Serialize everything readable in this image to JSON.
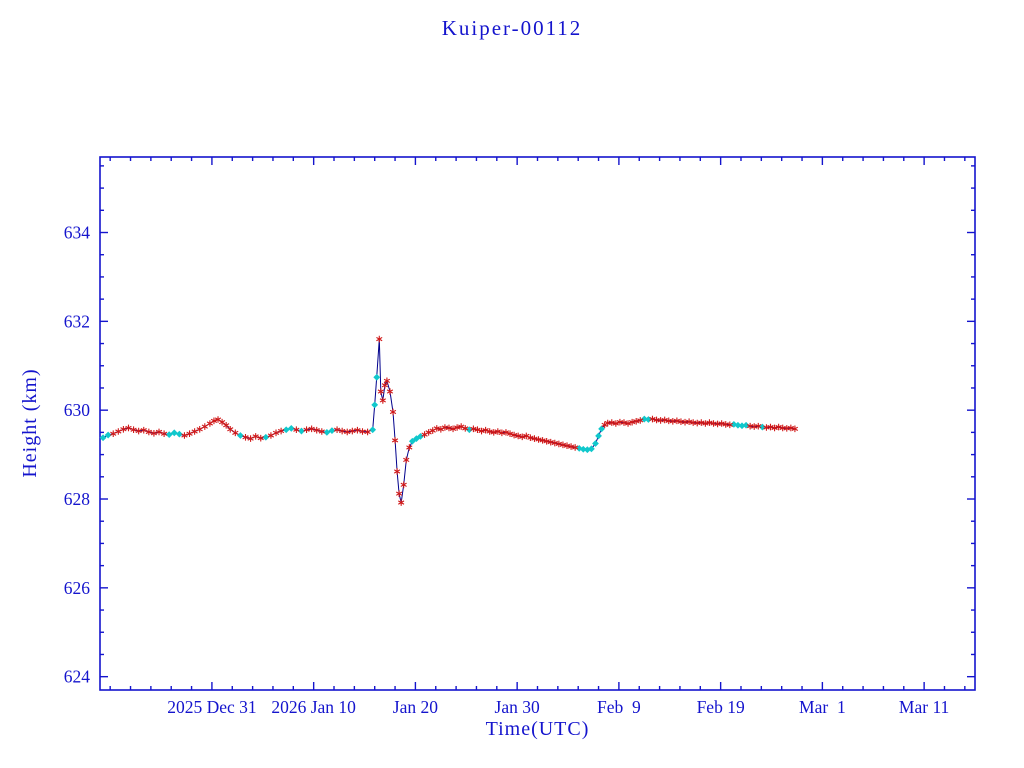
{
  "title": "Kuiper-00112",
  "colors": {
    "text": "#1414cd",
    "axis": "#1414cd",
    "line": "#00008c",
    "marker_red": "#d01818",
    "marker_cyan": "#10c8cc",
    "background": "#ffffff"
  },
  "chart_data": {
    "type": "line",
    "title": "Kuiper-00112",
    "xlabel": "Time(UTC)",
    "ylabel": "Height (km)",
    "grid": false,
    "legend": "none",
    "x_unit": "days (day 11 = 2025 Dec 31, day 21 = 2026 Jan 10)",
    "xlim": [
      0,
      86
    ],
    "ylim": [
      623.7,
      635.7
    ],
    "y_ticks": [
      624,
      626,
      628,
      630,
      632,
      634
    ],
    "y_minor_step": 0.5,
    "x_minor_step": 2,
    "x_ticks": [
      {
        "day": 11,
        "label": "2025 Dec 31"
      },
      {
        "day": 21,
        "label": "2026 Jan 10"
      },
      {
        "day": 31,
        "label": "Jan 20"
      },
      {
        "day": 41,
        "label": "Jan 30"
      },
      {
        "day": 51,
        "label": "Feb  9"
      },
      {
        "day": 61,
        "label": "Feb 19"
      },
      {
        "day": 71,
        "label": "Mar  1"
      },
      {
        "day": 81,
        "label": "Mar 11"
      }
    ],
    "marker_legend": {
      "0": "red asterisk",
      "1": "cyan diamond"
    },
    "series": [
      {
        "name": "height",
        "points": [
          [
            0.3,
            629.38,
            1
          ],
          [
            0.8,
            629.44,
            1
          ],
          [
            1.3,
            629.47,
            0
          ],
          [
            1.8,
            629.52,
            0
          ],
          [
            2.3,
            629.57,
            0
          ],
          [
            2.8,
            629.6,
            0
          ],
          [
            3.3,
            629.56,
            0
          ],
          [
            3.8,
            629.53,
            0
          ],
          [
            4.3,
            629.55,
            0
          ],
          [
            4.8,
            629.51,
            0
          ],
          [
            5.3,
            629.48,
            0
          ],
          [
            5.8,
            629.51,
            0
          ],
          [
            6.3,
            629.47,
            0
          ],
          [
            6.8,
            629.45,
            1
          ],
          [
            7.3,
            629.49,
            1
          ],
          [
            7.8,
            629.46,
            1
          ],
          [
            8.3,
            629.43,
            0
          ],
          [
            8.8,
            629.47,
            0
          ],
          [
            9.3,
            629.52,
            0
          ],
          [
            9.8,
            629.57,
            0
          ],
          [
            10.3,
            629.63,
            0
          ],
          [
            10.8,
            629.7,
            0
          ],
          [
            11.2,
            629.76,
            0
          ],
          [
            11.6,
            629.79,
            0
          ],
          [
            12.0,
            629.73,
            0
          ],
          [
            12.4,
            629.66,
            0
          ],
          [
            12.8,
            629.57,
            0
          ],
          [
            13.3,
            629.49,
            0
          ],
          [
            13.8,
            629.43,
            1
          ],
          [
            14.3,
            629.39,
            0
          ],
          [
            14.8,
            629.36,
            0
          ],
          [
            15.3,
            629.41,
            0
          ],
          [
            15.8,
            629.37,
            0
          ],
          [
            16.3,
            629.39,
            1
          ],
          [
            16.8,
            629.43,
            0
          ],
          [
            17.3,
            629.49,
            0
          ],
          [
            17.8,
            629.53,
            0
          ],
          [
            18.3,
            629.56,
            1
          ],
          [
            18.8,
            629.59,
            1
          ],
          [
            19.3,
            629.56,
            0
          ],
          [
            19.8,
            629.53,
            1
          ],
          [
            20.3,
            629.56,
            0
          ],
          [
            20.8,
            629.58,
            0
          ],
          [
            21.3,
            629.55,
            0
          ],
          [
            21.8,
            629.52,
            0
          ],
          [
            22.3,
            629.5,
            1
          ],
          [
            22.8,
            629.54,
            1
          ],
          [
            23.3,
            629.56,
            0
          ],
          [
            23.8,
            629.53,
            0
          ],
          [
            24.3,
            629.51,
            0
          ],
          [
            24.8,
            629.53,
            0
          ],
          [
            25.3,
            629.55,
            0
          ],
          [
            25.8,
            629.52,
            0
          ],
          [
            26.3,
            629.51,
            0
          ],
          [
            26.8,
            629.56,
            1
          ],
          [
            27.0,
            630.12,
            1
          ],
          [
            27.2,
            630.74,
            1
          ],
          [
            27.45,
            631.6,
            0
          ],
          [
            27.6,
            630.42,
            0
          ],
          [
            27.8,
            630.22,
            0
          ],
          [
            28.0,
            630.56,
            0
          ],
          [
            28.2,
            630.66,
            0
          ],
          [
            28.5,
            630.42,
            0
          ],
          [
            28.8,
            629.96,
            0
          ],
          [
            29.0,
            629.32,
            0
          ],
          [
            29.2,
            628.62,
            0
          ],
          [
            29.4,
            628.12,
            0
          ],
          [
            29.6,
            627.92,
            0
          ],
          [
            29.85,
            628.32,
            0
          ],
          [
            30.1,
            628.88,
            0
          ],
          [
            30.4,
            629.16,
            0
          ],
          [
            30.7,
            629.3,
            1
          ],
          [
            31.1,
            629.36,
            1
          ],
          [
            31.5,
            629.41,
            1
          ],
          [
            31.9,
            629.45,
            0
          ],
          [
            32.3,
            629.5,
            0
          ],
          [
            32.7,
            629.54,
            0
          ],
          [
            33.1,
            629.59,
            0
          ],
          [
            33.5,
            629.57,
            0
          ],
          [
            33.9,
            629.61,
            0
          ],
          [
            34.3,
            629.6,
            0
          ],
          [
            34.7,
            629.58,
            0
          ],
          [
            35.1,
            629.61,
            0
          ],
          [
            35.5,
            629.63,
            0
          ],
          [
            35.9,
            629.59,
            0
          ],
          [
            36.3,
            629.56,
            1
          ],
          [
            36.7,
            629.58,
            0
          ],
          [
            37.1,
            629.56,
            0
          ],
          [
            37.5,
            629.53,
            0
          ],
          [
            37.9,
            629.55,
            0
          ],
          [
            38.3,
            629.52,
            0
          ],
          [
            38.7,
            629.5,
            0
          ],
          [
            39.1,
            629.52,
            0
          ],
          [
            39.5,
            629.49,
            0
          ],
          [
            39.9,
            629.5,
            0
          ],
          [
            40.3,
            629.47,
            0
          ],
          [
            40.7,
            629.44,
            0
          ],
          [
            41.1,
            629.42,
            0
          ],
          [
            41.5,
            629.4,
            0
          ],
          [
            41.9,
            629.42,
            0
          ],
          [
            42.3,
            629.38,
            0
          ],
          [
            42.7,
            629.36,
            0
          ],
          [
            43.1,
            629.34,
            0
          ],
          [
            43.5,
            629.32,
            0
          ],
          [
            43.9,
            629.3,
            0
          ],
          [
            44.3,
            629.28,
            0
          ],
          [
            44.7,
            629.26,
            0
          ],
          [
            45.1,
            629.24,
            0
          ],
          [
            45.5,
            629.22,
            0
          ],
          [
            45.9,
            629.2,
            0
          ],
          [
            46.3,
            629.18,
            0
          ],
          [
            46.7,
            629.16,
            0
          ],
          [
            47.1,
            629.14,
            1
          ],
          [
            47.5,
            629.12,
            1
          ],
          [
            47.9,
            629.11,
            1
          ],
          [
            48.3,
            629.13,
            1
          ],
          [
            48.7,
            629.25,
            1
          ],
          [
            49.0,
            629.42,
            1
          ],
          [
            49.3,
            629.58,
            1
          ],
          [
            49.6,
            629.67,
            0
          ],
          [
            49.9,
            629.71,
            0
          ],
          [
            50.3,
            629.72,
            0
          ],
          [
            50.7,
            629.7,
            0
          ],
          [
            51.1,
            629.73,
            0
          ],
          [
            51.5,
            629.72,
            0
          ],
          [
            51.9,
            629.7,
            0
          ],
          [
            52.3,
            629.73,
            0
          ],
          [
            52.7,
            629.75,
            0
          ],
          [
            53.1,
            629.77,
            0
          ],
          [
            53.5,
            629.8,
            1
          ],
          [
            53.9,
            629.79,
            1
          ],
          [
            54.3,
            629.8,
            0
          ],
          [
            54.7,
            629.78,
            0
          ],
          [
            55.1,
            629.77,
            0
          ],
          [
            55.5,
            629.78,
            0
          ],
          [
            55.9,
            629.76,
            0
          ],
          [
            56.3,
            629.75,
            0
          ],
          [
            56.7,
            629.76,
            0
          ],
          [
            57.1,
            629.74,
            0
          ],
          [
            57.5,
            629.73,
            0
          ],
          [
            57.9,
            629.74,
            0
          ],
          [
            58.3,
            629.72,
            0
          ],
          [
            58.7,
            629.71,
            0
          ],
          [
            59.1,
            629.72,
            0
          ],
          [
            59.5,
            629.7,
            0
          ],
          [
            59.9,
            629.72,
            0
          ],
          [
            60.3,
            629.7,
            0
          ],
          [
            60.7,
            629.69,
            0
          ],
          [
            61.1,
            629.7,
            0
          ],
          [
            61.5,
            629.68,
            0
          ],
          [
            61.9,
            629.67,
            0
          ],
          [
            62.3,
            629.68,
            1
          ],
          [
            62.7,
            629.66,
            1
          ],
          [
            63.1,
            629.65,
            1
          ],
          [
            63.5,
            629.66,
            1
          ],
          [
            63.9,
            629.64,
            0
          ],
          [
            64.3,
            629.63,
            0
          ],
          [
            64.7,
            629.64,
            0
          ],
          [
            65.1,
            629.62,
            1
          ],
          [
            65.5,
            629.61,
            0
          ],
          [
            65.9,
            629.62,
            0
          ],
          [
            66.3,
            629.6,
            0
          ],
          [
            66.7,
            629.62,
            0
          ],
          [
            67.1,
            629.6,
            0
          ],
          [
            67.5,
            629.59,
            0
          ],
          [
            67.9,
            629.6,
            0
          ],
          [
            68.3,
            629.58,
            0
          ]
        ]
      }
    ]
  }
}
